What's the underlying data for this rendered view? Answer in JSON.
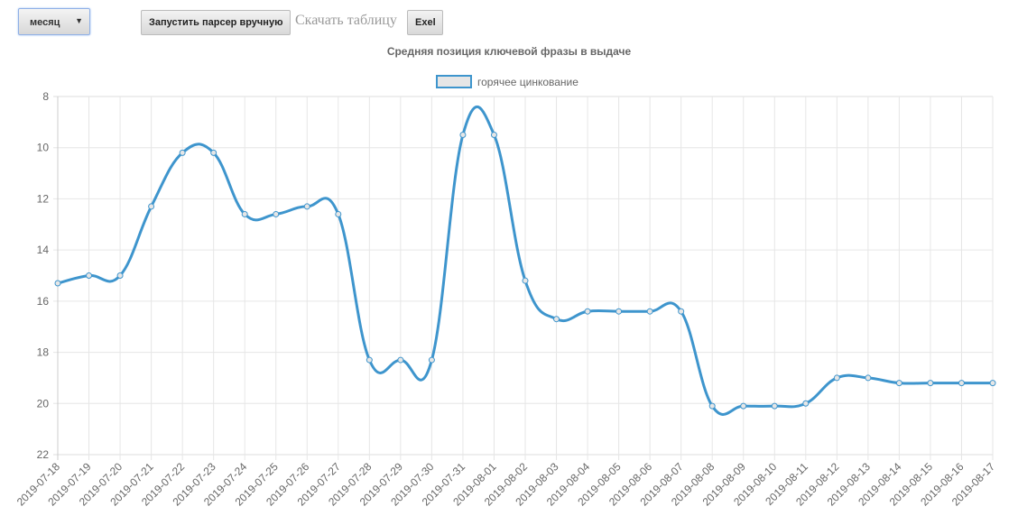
{
  "controls": {
    "period_select": "месяц",
    "run_parser_button": "Запустить парсер вручную",
    "download_label": "Скачать таблицу",
    "excel_button": "Exel"
  },
  "chart_data": {
    "type": "line",
    "title": "Средняя позиция ключевой фразы в выдаче",
    "y_reversed": true,
    "ylim": [
      8,
      22
    ],
    "yticks": [
      8,
      10,
      12,
      14,
      16,
      18,
      20,
      22
    ],
    "grid": true,
    "legend_position": "top",
    "categories": [
      "2019-07-18",
      "2019-07-19",
      "2019-07-20",
      "2019-07-21",
      "2019-07-22",
      "2019-07-23",
      "2019-07-24",
      "2019-07-25",
      "2019-07-26",
      "2019-07-27",
      "2019-07-28",
      "2019-07-29",
      "2019-07-30",
      "2019-07-31",
      "2019-08-01",
      "2019-08-02",
      "2019-08-03",
      "2019-08-04",
      "2019-08-05",
      "2019-08-06",
      "2019-08-07",
      "2019-08-08",
      "2019-08-09",
      "2019-08-10",
      "2019-08-11",
      "2019-08-12",
      "2019-08-13",
      "2019-08-14",
      "2019-08-15",
      "2019-08-16",
      "2019-08-17"
    ],
    "series": [
      {
        "name": "горячее цинкование",
        "color": "#3e95cd",
        "values": [
          15.3,
          15.0,
          15.0,
          12.3,
          10.2,
          10.2,
          12.6,
          12.6,
          12.3,
          12.6,
          18.3,
          18.3,
          18.3,
          9.5,
          9.5,
          15.2,
          16.7,
          16.4,
          16.4,
          16.4,
          16.4,
          20.1,
          20.1,
          20.1,
          20.0,
          19.0,
          19.0,
          19.2,
          19.2,
          19.2,
          19.2
        ]
      }
    ]
  }
}
